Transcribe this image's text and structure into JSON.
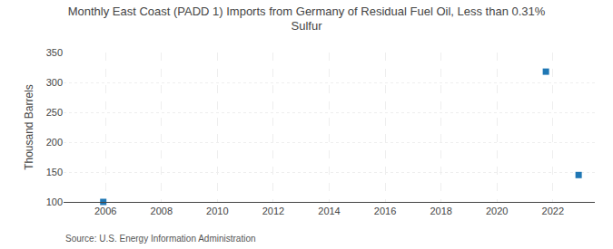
{
  "chart_data": {
    "type": "scatter",
    "title": "Monthly East Coast (PADD 1) Imports from Germany of Residual Fuel Oil, Less than 0.31%\nSulfur",
    "ylabel": "Thousand Barrels",
    "source": "Source: U.S. Energy Information Administration",
    "x": [
      2005.92,
      2021.75,
      2022.92
    ],
    "values": [
      100,
      318,
      145
    ],
    "marker": "square",
    "xlim": [
      2004.5,
      2023.5
    ],
    "ylim": [
      100,
      350
    ],
    "xticks": [
      2006,
      2008,
      2010,
      2012,
      2014,
      2016,
      2018,
      2020,
      2022
    ],
    "yticks": [
      100,
      150,
      200,
      250,
      300,
      350
    ],
    "grid": true
  }
}
